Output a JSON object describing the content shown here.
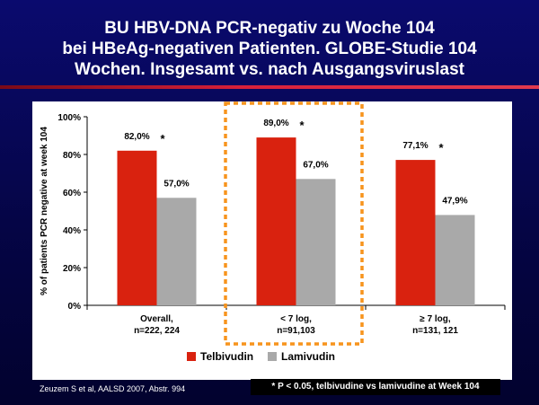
{
  "slide": {
    "title_lines": [
      "BU HBV-DNA PCR-negativ zu Woche 104",
      "bei HBeAg-negativen Patienten. GLOBE-Studie 104",
      "Wochen. Insgesamt vs. nach Ausgangsviruslast"
    ],
    "citation": "Zeuzem S et al, AALSD 2007, Abstr. 994",
    "footnote": "* P < 0.05, telbivudine vs lamivudine at Week 104"
  },
  "chart_data": {
    "type": "bar",
    "ylabel": "% of patients PCR negative at week 104",
    "ylim": [
      0,
      100
    ],
    "yticks": [
      "0%",
      "20%",
      "40%",
      "60%",
      "80%",
      "100%"
    ],
    "categories": [
      [
        "Overall,",
        "n=222, 224"
      ],
      [
        "< 7 log,",
        "n=91,103"
      ],
      [
        "≥ 7 log,",
        "n=131, 121"
      ]
    ],
    "series": [
      {
        "name": "Telbivudin",
        "color": "#d9220f",
        "values": [
          82.0,
          89.0,
          77.1
        ],
        "labels": [
          "82,0%",
          "89,0%",
          "77,1%"
        ]
      },
      {
        "name": "Lamivudin",
        "color": "#a9a9a9",
        "values": [
          57.0,
          67.0,
          47.9
        ],
        "labels": [
          "57,0%",
          "67,0%",
          "47,9%"
        ]
      }
    ],
    "significance_marker": "*",
    "highlighted_category": 1,
    "highlight_color": "#f7941d",
    "legend_position": "bottom"
  }
}
